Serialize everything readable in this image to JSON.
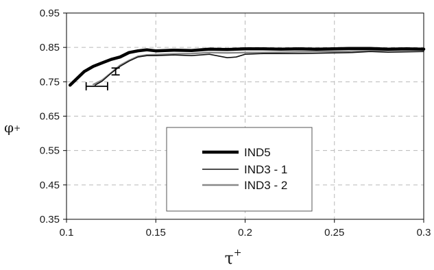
{
  "chart_data": {
    "type": "line",
    "xlabel": "τ",
    "xlabel_sup": "+",
    "ylabel": "φ",
    "ylabel_sup": "+",
    "xlim": [
      0.1,
      0.3
    ],
    "ylim": [
      0.35,
      0.95
    ],
    "x_ticks": [
      "0.1",
      "0.15",
      "0.2",
      "0.25",
      "0.3"
    ],
    "y_ticks": [
      "0.35",
      "0.45",
      "0.55",
      "0.65",
      "0.75",
      "0.85",
      "0.95"
    ],
    "x_tick_values": [
      0.1,
      0.15,
      0.2,
      0.25,
      0.3
    ],
    "y_tick_values": [
      0.35,
      0.45,
      0.55,
      0.65,
      0.75,
      0.85,
      0.95
    ],
    "grid": true,
    "legend_position": "center",
    "series": [
      {
        "name": "IND5",
        "color": "#000000",
        "style": "thick",
        "x": [
          0.102,
          0.105,
          0.11,
          0.115,
          0.12,
          0.125,
          0.13,
          0.135,
          0.14,
          0.145,
          0.15,
          0.16,
          0.17,
          0.18,
          0.19,
          0.2,
          0.21,
          0.22,
          0.23,
          0.24,
          0.25,
          0.26,
          0.27,
          0.28,
          0.29,
          0.3
        ],
        "y": [
          0.74,
          0.755,
          0.78,
          0.795,
          0.805,
          0.815,
          0.822,
          0.835,
          0.84,
          0.843,
          0.84,
          0.842,
          0.841,
          0.845,
          0.844,
          0.846,
          0.846,
          0.845,
          0.846,
          0.845,
          0.846,
          0.847,
          0.847,
          0.845,
          0.846,
          0.845
        ]
      },
      {
        "name": "IND3 - 1",
        "color": "#111111",
        "style": "thin",
        "x": [
          0.116,
          0.12,
          0.125,
          0.13,
          0.135,
          0.14,
          0.145,
          0.15,
          0.16,
          0.17,
          0.18,
          0.185,
          0.19,
          0.195,
          0.2,
          0.21,
          0.22,
          0.23,
          0.24,
          0.25,
          0.26,
          0.27,
          0.28,
          0.29,
          0.3
        ],
        "y": [
          0.74,
          0.752,
          0.775,
          0.795,
          0.81,
          0.822,
          0.826,
          0.826,
          0.828,
          0.826,
          0.83,
          0.825,
          0.82,
          0.822,
          0.83,
          0.832,
          0.832,
          0.832,
          0.833,
          0.834,
          0.835,
          0.838,
          0.836,
          0.837,
          0.838
        ]
      },
      {
        "name": "IND3 - 2",
        "color": "#888888",
        "style": "medium",
        "x": [
          0.115,
          0.12,
          0.125,
          0.13,
          0.135,
          0.14,
          0.145,
          0.15,
          0.16,
          0.17,
          0.18,
          0.19,
          0.2,
          0.21,
          0.22,
          0.23,
          0.24,
          0.25,
          0.26,
          0.27,
          0.28,
          0.29,
          0.3
        ],
        "y": [
          0.742,
          0.755,
          0.776,
          0.798,
          0.812,
          0.824,
          0.828,
          0.829,
          0.831,
          0.832,
          0.835,
          0.834,
          0.835,
          0.835,
          0.836,
          0.837,
          0.838,
          0.838,
          0.839,
          0.84,
          0.841,
          0.842,
          0.843
        ]
      }
    ],
    "error_bars": [
      {
        "orientation": "horizontal",
        "y": 0.737,
        "x_from": 0.111,
        "x_to": 0.123
      },
      {
        "orientation": "vertical",
        "x": 0.1275,
        "y_from": 0.77,
        "y_to": 0.79
      }
    ]
  }
}
